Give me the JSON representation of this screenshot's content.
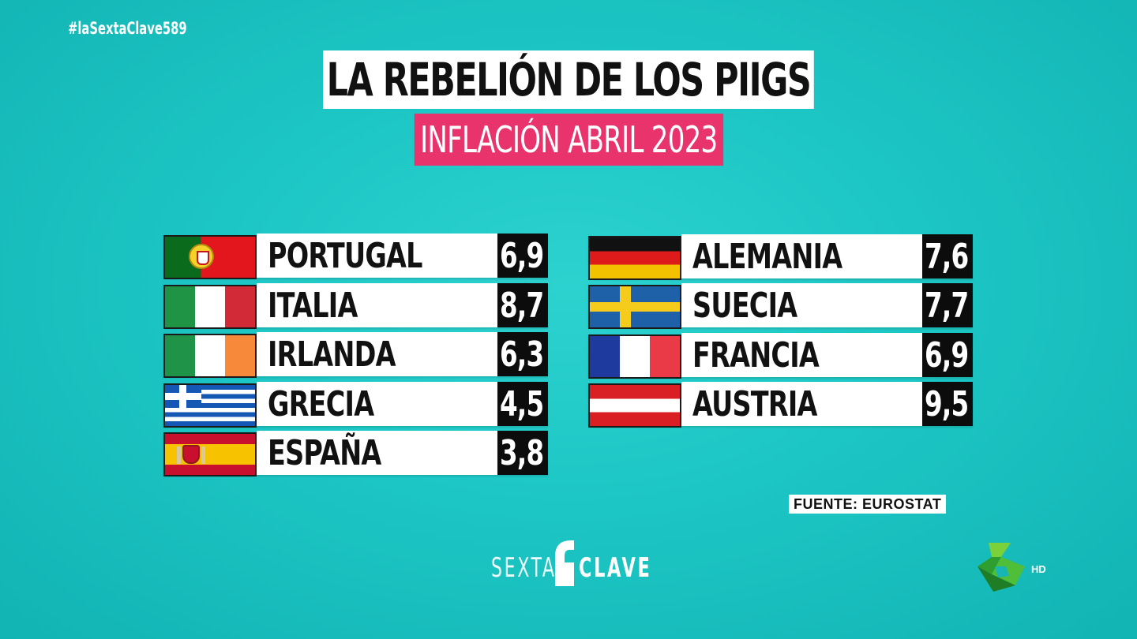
{
  "hashtag": "#laSextaClave589",
  "title": "LA REBELIÓN DE LOS PIIGS",
  "subtitle": "INFLACIÓN ABRIL 2023",
  "left_table": [
    {
      "flag": "portugal-flag",
      "country": "PORTUGAL",
      "value": "6,9"
    },
    {
      "flag": "italy-flag",
      "country": "ITALIA",
      "value": "8,7"
    },
    {
      "flag": "ireland-flag",
      "country": "IRLANDA",
      "value": "6,3"
    },
    {
      "flag": "greece-flag",
      "country": "GRECIA",
      "value": "4,5"
    },
    {
      "flag": "spain-flag",
      "country": "ESPAÑA",
      "value": "3,8"
    }
  ],
  "right_table": [
    {
      "flag": "germany-flag",
      "country": "ALEMANIA",
      "value": "7,6"
    },
    {
      "flag": "sweden-flag",
      "country": "SUECIA",
      "value": "7,7"
    },
    {
      "flag": "france-flag",
      "country": "FRANCIA",
      "value": "6,9"
    },
    {
      "flag": "austria-flag",
      "country": "AUSTRIA",
      "value": "9,5"
    }
  ],
  "source": "FUENTE: EUROSTAT",
  "program_logo": {
    "left": "SEXTA",
    "right": "CLAVE"
  },
  "channel_logo": {
    "name": "la-sexta-logo-icon",
    "badge": "HD"
  },
  "colors": {
    "background": "#1cc6c4",
    "subtitle_bg": "#e8336c",
    "value_bg": "#0c0c0c"
  }
}
